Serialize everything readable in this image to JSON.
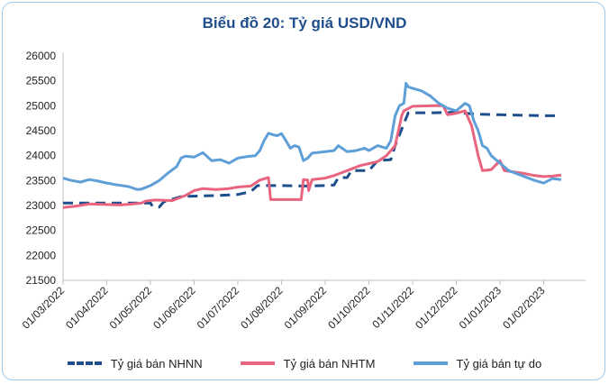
{
  "chart_data": {
    "type": "line",
    "title": "Biểu đồ 20: Tỷ giá USD/VND",
    "xlabel": "",
    "ylabel": "",
    "ylim": [
      21500,
      26000
    ],
    "y_ticks": [
      "26000",
      "25500",
      "25000",
      "24500",
      "24000",
      "23500",
      "23000",
      "22500",
      "22000",
      "21500"
    ],
    "x_ticks": [
      "01/03/2022",
      "01/04/2022",
      "01/05/2022",
      "01/06/2022",
      "01/07/2022",
      "01/08/2022",
      "01/09/2022",
      "01/10/2022",
      "01/11/2022",
      "01/12/2022",
      "01/01/2023",
      "01/02/2023"
    ],
    "grid": false,
    "legend_position": "bottom",
    "series": [
      {
        "name": "Tỷ giá bán NHNN",
        "color": "#1f4e8c",
        "style": "dashed",
        "points": [
          [
            0,
            23050
          ],
          [
            1,
            23050
          ],
          [
            2,
            23050
          ],
          [
            2.05,
            22980
          ],
          [
            2.2,
            22970
          ],
          [
            2.3,
            23070
          ],
          [
            2.7,
            23180
          ],
          [
            3.5,
            23200
          ],
          [
            4,
            23220
          ],
          [
            4.3,
            23280
          ],
          [
            4.45,
            23400
          ],
          [
            5,
            23400
          ],
          [
            5.5,
            23390
          ],
          [
            6,
            23400
          ],
          [
            6.2,
            23410
          ],
          [
            6.3,
            23560
          ],
          [
            6.5,
            23560
          ],
          [
            6.6,
            23700
          ],
          [
            7,
            23700
          ],
          [
            7.2,
            23900
          ],
          [
            7.5,
            23920
          ],
          [
            7.6,
            24200
          ],
          [
            7.9,
            24860
          ],
          [
            8.5,
            24860
          ],
          [
            9,
            24870
          ],
          [
            9.2,
            24850
          ],
          [
            9.5,
            24830
          ],
          [
            10,
            24820
          ],
          [
            11,
            24800
          ],
          [
            11.4,
            24800
          ]
        ]
      },
      {
        "name": "Tỷ giá bán NHTM",
        "color": "#e8647f",
        "style": "solid",
        "points": [
          [
            0,
            22960
          ],
          [
            0.3,
            22990
          ],
          [
            0.6,
            23030
          ],
          [
            1,
            23020
          ],
          [
            1.3,
            23010
          ],
          [
            1.6,
            23030
          ],
          [
            1.8,
            23050
          ],
          [
            1.9,
            23090
          ],
          [
            2.1,
            23110
          ],
          [
            2.5,
            23100
          ],
          [
            2.8,
            23200
          ],
          [
            3,
            23300
          ],
          [
            3.2,
            23340
          ],
          [
            3.5,
            23320
          ],
          [
            3.8,
            23340
          ],
          [
            4,
            23370
          ],
          [
            4.3,
            23390
          ],
          [
            4.5,
            23510
          ],
          [
            4.7,
            23560
          ],
          [
            4.75,
            23120
          ],
          [
            5,
            23120
          ],
          [
            5.3,
            23120
          ],
          [
            5.45,
            23120
          ],
          [
            5.5,
            23520
          ],
          [
            5.6,
            23510
          ],
          [
            5.62,
            23300
          ],
          [
            5.7,
            23520
          ],
          [
            6,
            23550
          ],
          [
            6.2,
            23600
          ],
          [
            6.5,
            23700
          ],
          [
            6.8,
            23800
          ],
          [
            7,
            23840
          ],
          [
            7.2,
            23880
          ],
          [
            7.4,
            24000
          ],
          [
            7.6,
            24200
          ],
          [
            7.75,
            24800
          ],
          [
            7.8,
            24900
          ],
          [
            8,
            24990
          ],
          [
            8.5,
            25000
          ],
          [
            8.7,
            25000
          ],
          [
            8.8,
            24820
          ],
          [
            9,
            24850
          ],
          [
            9.2,
            24900
          ],
          [
            9.35,
            24600
          ],
          [
            9.5,
            24000
          ],
          [
            9.6,
            23700
          ],
          [
            9.8,
            23720
          ],
          [
            10,
            23900
          ],
          [
            10.1,
            23700
          ],
          [
            10.5,
            23650
          ],
          [
            10.8,
            23600
          ],
          [
            11,
            23580
          ],
          [
            11.2,
            23590
          ],
          [
            11.4,
            23610
          ]
        ]
      },
      {
        "name": "Tỷ giá bán tự do",
        "color": "#5f9fd8",
        "style": "solid",
        "points": [
          [
            0,
            23550
          ],
          [
            0.2,
            23500
          ],
          [
            0.4,
            23470
          ],
          [
            0.6,
            23520
          ],
          [
            0.8,
            23490
          ],
          [
            1,
            23450
          ],
          [
            1.2,
            23420
          ],
          [
            1.5,
            23380
          ],
          [
            1.7,
            23320
          ],
          [
            1.8,
            23330
          ],
          [
            2,
            23400
          ],
          [
            2.2,
            23500
          ],
          [
            2.4,
            23650
          ],
          [
            2.6,
            23780
          ],
          [
            2.7,
            23950
          ],
          [
            2.8,
            23990
          ],
          [
            3,
            23970
          ],
          [
            3.2,
            24060
          ],
          [
            3.4,
            23900
          ],
          [
            3.6,
            23920
          ],
          [
            3.8,
            23850
          ],
          [
            4,
            23950
          ],
          [
            4.2,
            23980
          ],
          [
            4.4,
            24000
          ],
          [
            4.5,
            24100
          ],
          [
            4.6,
            24300
          ],
          [
            4.7,
            24450
          ],
          [
            4.8,
            24420
          ],
          [
            4.9,
            24400
          ],
          [
            5,
            24440
          ],
          [
            5.1,
            24300
          ],
          [
            5.2,
            24150
          ],
          [
            5.3,
            24200
          ],
          [
            5.4,
            24170
          ],
          [
            5.5,
            23900
          ],
          [
            5.6,
            23950
          ],
          [
            5.7,
            24050
          ],
          [
            6,
            24080
          ],
          [
            6.2,
            24100
          ],
          [
            6.3,
            24200
          ],
          [
            6.5,
            24080
          ],
          [
            6.7,
            24100
          ],
          [
            6.9,
            24150
          ],
          [
            7,
            24100
          ],
          [
            7.2,
            24200
          ],
          [
            7.4,
            24150
          ],
          [
            7.5,
            24300
          ],
          [
            7.6,
            24800
          ],
          [
            7.7,
            25000
          ],
          [
            7.8,
            25050
          ],
          [
            7.85,
            25450
          ],
          [
            7.9,
            25380
          ],
          [
            8,
            25350
          ],
          [
            8.2,
            25300
          ],
          [
            8.4,
            25200
          ],
          [
            8.6,
            25050
          ],
          [
            8.8,
            24950
          ],
          [
            9,
            24900
          ],
          [
            9.2,
            25050
          ],
          [
            9.3,
            25000
          ],
          [
            9.4,
            24700
          ],
          [
            9.5,
            24500
          ],
          [
            9.6,
            24200
          ],
          [
            9.7,
            24150
          ],
          [
            9.8,
            24000
          ],
          [
            10,
            23850
          ],
          [
            10.2,
            23700
          ],
          [
            10.5,
            23600
          ],
          [
            10.8,
            23500
          ],
          [
            11,
            23450
          ],
          [
            11.2,
            23540
          ],
          [
            11.4,
            23520
          ]
        ]
      }
    ]
  }
}
